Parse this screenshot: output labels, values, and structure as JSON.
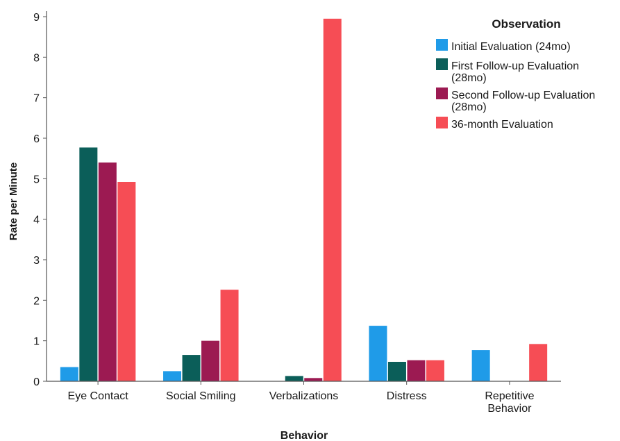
{
  "chart_data": {
    "type": "bar",
    "xlabel": "Behavior",
    "ylabel": "Rate per Minute",
    "ylim": [
      0,
      9
    ],
    "yticks": [
      "0",
      "1",
      "2",
      "3",
      "4",
      "5",
      "6",
      "7",
      "8",
      "9"
    ],
    "categories": [
      [
        "Eye Contact"
      ],
      [
        "Social Smiling"
      ],
      [
        "Verbalizations"
      ],
      [
        "Distress"
      ],
      [
        "Repetitive",
        "Behavior"
      ]
    ],
    "legend_title": "Observation",
    "legend_position": "top-right",
    "series": [
      {
        "name": [
          "Initial Evaluation (24mo)"
        ],
        "color": "#1f9be8",
        "values": [
          0.35,
          0.25,
          0,
          1.37,
          0.77
        ]
      },
      {
        "name": [
          "First Follow-up Evaluation",
          "(28mo)"
        ],
        "color": "#0b5e59",
        "values": [
          5.77,
          0.65,
          0.13,
          0.48,
          0
        ]
      },
      {
        "name": [
          "Second Follow-up Evaluation",
          "(28mo)"
        ],
        "color": "#9c1a52",
        "values": [
          5.4,
          1.0,
          0.08,
          0.52,
          0
        ]
      },
      {
        "name": [
          "36-month Evaluation"
        ],
        "color": "#f64d55",
        "values": [
          4.92,
          2.26,
          8.95,
          0.52,
          0.92
        ]
      }
    ]
  }
}
